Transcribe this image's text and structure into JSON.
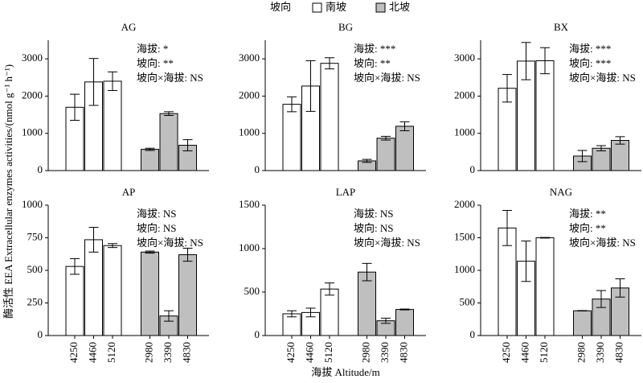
{
  "legend": {
    "title": "坡向",
    "items": [
      {
        "name": "南坡",
        "color": "#ffffff"
      },
      {
        "name": "北坡",
        "color": "#bfbfbf"
      }
    ]
  },
  "categories": [
    "4250",
    "4460",
    "5120",
    "2980",
    "3390",
    "4830"
  ],
  "xlabel": "海拔 Altitude/m",
  "ylabel": "酶活性 EEA Extracellular enzymes activities/(nmol g⁻¹ h⁻¹)",
  "chart_data": [
    {
      "type": "bar",
      "title": "AG",
      "ylim": [
        0,
        3500
      ],
      "yticks": [
        0,
        1000,
        2000,
        3000
      ],
      "annotations": [
        "海拔: *",
        "坡向: **",
        "坡向×海拔: NS"
      ],
      "series": [
        {
          "values": [
            1700,
            2380,
            2400,
            null,
            null,
            null
          ],
          "errors": [
            350,
            630,
            250,
            null,
            null,
            null
          ]
        },
        {
          "values": [
            null,
            null,
            null,
            570,
            1530,
            680
          ],
          "errors": [
            null,
            null,
            null,
            30,
            50,
            150
          ]
        }
      ]
    },
    {
      "type": "bar",
      "title": "BG",
      "ylim": [
        0,
        3500
      ],
      "yticks": [
        0,
        1000,
        2000,
        3000
      ],
      "annotations": [
        "海拔: ***",
        "坡向: **",
        "坡向×海拔: NS"
      ],
      "series": [
        {
          "values": [
            1780,
            2270,
            2880,
            null,
            null,
            null
          ],
          "errors": [
            200,
            680,
            150,
            null,
            null,
            null
          ]
        },
        {
          "values": [
            null,
            null,
            null,
            260,
            870,
            1190
          ],
          "errors": [
            null,
            null,
            null,
            40,
            50,
            120
          ]
        }
      ]
    },
    {
      "type": "bar",
      "title": "BX",
      "ylim": [
        0,
        3500
      ],
      "yticks": [
        0,
        1000,
        2000,
        3000
      ],
      "annotations": [
        "海拔: ***",
        "坡向: ***",
        "坡向×海拔: NS"
      ],
      "series": [
        {
          "values": [
            2210,
            2940,
            2950,
            null,
            null,
            null
          ],
          "errors": [
            370,
            500,
            350,
            null,
            null,
            null
          ]
        },
        {
          "values": [
            null,
            null,
            null,
            390,
            600,
            810
          ],
          "errors": [
            null,
            null,
            null,
            150,
            70,
            100
          ]
        }
      ]
    },
    {
      "type": "bar",
      "title": "AP",
      "ylim": [
        0,
        1000
      ],
      "yticks": [
        0,
        250,
        500,
        750,
        1000
      ],
      "annotations": [
        "海拔: NS",
        "坡向: NS",
        "坡向×海拔: NS"
      ],
      "series": [
        {
          "values": [
            530,
            735,
            690,
            null,
            null,
            null
          ],
          "errors": [
            60,
            95,
            15,
            null,
            null,
            null
          ]
        },
        {
          "values": [
            null,
            null,
            null,
            640,
            150,
            620
          ],
          "errors": [
            null,
            null,
            null,
            8,
            40,
            50
          ]
        }
      ]
    },
    {
      "type": "bar",
      "title": "LAP",
      "ylim": [
        0,
        1500
      ],
      "yticks": [
        0,
        500,
        1000,
        1500
      ],
      "annotations": [
        "海拔: NS",
        "坡向: NS",
        "坡向×海拔: NS"
      ],
      "series": [
        {
          "values": [
            250,
            265,
            535,
            null,
            null,
            null
          ],
          "errors": [
            35,
            50,
            70,
            null,
            null,
            null
          ]
        },
        {
          "values": [
            null,
            null,
            null,
            730,
            170,
            300
          ],
          "errors": [
            null,
            null,
            null,
            100,
            30,
            5
          ]
        }
      ]
    },
    {
      "type": "bar",
      "title": "NAG",
      "ylim": [
        0,
        2000
      ],
      "yticks": [
        0,
        500,
        1000,
        1500,
        2000
      ],
      "annotations": [
        "海拔: **",
        "坡向: **",
        "坡向×海拔: NS"
      ],
      "series": [
        {
          "values": [
            1650,
            1140,
            1500,
            null,
            null,
            null
          ],
          "errors": [
            270,
            310,
            5,
            null,
            null,
            null
          ]
        },
        {
          "values": [
            null,
            null,
            null,
            380,
            560,
            730
          ],
          "errors": [
            null,
            null,
            null,
            3,
            130,
            140
          ]
        }
      ]
    }
  ]
}
